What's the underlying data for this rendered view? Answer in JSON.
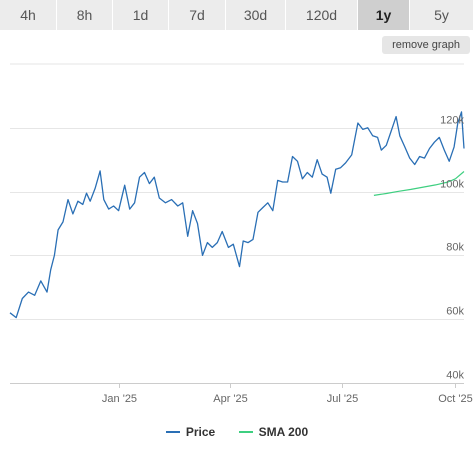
{
  "tabs": [
    {
      "label": "4h",
      "active": false
    },
    {
      "label": "8h",
      "active": false
    },
    {
      "label": "1d",
      "active": false
    },
    {
      "label": "7d",
      "active": false
    },
    {
      "label": "30d",
      "active": false
    },
    {
      "label": "120d",
      "active": false
    },
    {
      "label": "1y",
      "active": true
    },
    {
      "label": "5y",
      "active": false
    }
  ],
  "remove_graph_label": "remove graph",
  "colors": {
    "price": "#2a6fb5",
    "sma": "#3ecf80",
    "grid": "#e6e6e6",
    "tab_bg": "#ececec",
    "tab_active": "#cfcfcf"
  },
  "legend": {
    "price_label": "Price",
    "sma_label": "SMA 200"
  },
  "chart_data": {
    "type": "line",
    "x_tick_labels": [
      "Jan '25",
      "Apr '25",
      "Jul '25",
      "Oct '25"
    ],
    "x_tick_dates": [
      "2025-01-01",
      "2025-04-01",
      "2025-07-01",
      "2025-10-01"
    ],
    "x_range": [
      "2024-10-05",
      "2025-10-08"
    ],
    "y_tick_labels": [
      "40k",
      "60k",
      "80k",
      "100k",
      "120k"
    ],
    "y_ticks": [
      40000,
      60000,
      80000,
      100000,
      120000
    ],
    "ylim": [
      40000,
      140000
    ],
    "grid": true,
    "legend_position": "bottom",
    "series": [
      {
        "name": "Price",
        "color": "#2a6fb5",
        "points": [
          [
            "2024-10-05",
            62000
          ],
          [
            "2024-10-10",
            60500
          ],
          [
            "2024-10-15",
            66500
          ],
          [
            "2024-10-20",
            68500
          ],
          [
            "2024-10-25",
            67500
          ],
          [
            "2024-10-30",
            72000
          ],
          [
            "2024-11-04",
            68500
          ],
          [
            "2024-11-07",
            75500
          ],
          [
            "2024-11-10",
            80000
          ],
          [
            "2024-11-13",
            88000
          ],
          [
            "2024-11-17",
            90500
          ],
          [
            "2024-11-21",
            97500
          ],
          [
            "2024-11-25",
            93000
          ],
          [
            "2024-11-29",
            97000
          ],
          [
            "2024-12-03",
            96000
          ],
          [
            "2024-12-06",
            99500
          ],
          [
            "2024-12-09",
            97000
          ],
          [
            "2024-12-13",
            101000
          ],
          [
            "2024-12-17",
            106500
          ],
          [
            "2024-12-20",
            97500
          ],
          [
            "2024-12-24",
            94500
          ],
          [
            "2024-12-28",
            95500
          ],
          [
            "2025-01-01",
            94000
          ],
          [
            "2025-01-06",
            102000
          ],
          [
            "2025-01-10",
            94500
          ],
          [
            "2025-01-14",
            96500
          ],
          [
            "2025-01-18",
            104500
          ],
          [
            "2025-01-22",
            106000
          ],
          [
            "2025-01-26",
            102500
          ],
          [
            "2025-01-30",
            104500
          ],
          [
            "2025-02-03",
            98000
          ],
          [
            "2025-02-08",
            96500
          ],
          [
            "2025-02-13",
            97500
          ],
          [
            "2025-02-18",
            95500
          ],
          [
            "2025-02-22",
            96500
          ],
          [
            "2025-02-26",
            86000
          ],
          [
            "2025-03-02",
            94000
          ],
          [
            "2025-03-06",
            90000
          ],
          [
            "2025-03-10",
            80000
          ],
          [
            "2025-03-14",
            84000
          ],
          [
            "2025-03-18",
            82500
          ],
          [
            "2025-03-22",
            84000
          ],
          [
            "2025-03-26",
            87500
          ],
          [
            "2025-03-31",
            82500
          ],
          [
            "2025-04-04",
            83500
          ],
          [
            "2025-04-09",
            76500
          ],
          [
            "2025-04-12",
            84500
          ],
          [
            "2025-04-16",
            84000
          ],
          [
            "2025-04-20",
            85000
          ],
          [
            "2025-04-24",
            93500
          ],
          [
            "2025-04-28",
            95000
          ],
          [
            "2025-05-02",
            96500
          ],
          [
            "2025-05-06",
            94000
          ],
          [
            "2025-05-10",
            103500
          ],
          [
            "2025-05-14",
            103000
          ],
          [
            "2025-05-18",
            103000
          ],
          [
            "2025-05-22",
            111000
          ],
          [
            "2025-05-26",
            109500
          ],
          [
            "2025-05-30",
            104000
          ],
          [
            "2025-06-03",
            106000
          ],
          [
            "2025-06-07",
            104500
          ],
          [
            "2025-06-11",
            110000
          ],
          [
            "2025-06-15",
            105500
          ],
          [
            "2025-06-19",
            104500
          ],
          [
            "2025-06-22",
            99500
          ],
          [
            "2025-06-26",
            107000
          ],
          [
            "2025-06-30",
            107500
          ],
          [
            "2025-07-04",
            109000
          ],
          [
            "2025-07-09",
            111500
          ],
          [
            "2025-07-12",
            117500
          ],
          [
            "2025-07-14",
            121500
          ],
          [
            "2025-07-18",
            119500
          ],
          [
            "2025-07-22",
            120000
          ],
          [
            "2025-07-26",
            117500
          ],
          [
            "2025-07-30",
            117000
          ],
          [
            "2025-08-02",
            113000
          ],
          [
            "2025-08-06",
            114500
          ],
          [
            "2025-08-10",
            119000
          ],
          [
            "2025-08-14",
            123500
          ],
          [
            "2025-08-17",
            117500
          ],
          [
            "2025-08-21",
            114000
          ],
          [
            "2025-08-25",
            110500
          ],
          [
            "2025-08-29",
            108500
          ],
          [
            "2025-09-02",
            111000
          ],
          [
            "2025-09-06",
            110500
          ],
          [
            "2025-09-10",
            113500
          ],
          [
            "2025-09-14",
            115500
          ],
          [
            "2025-09-18",
            117000
          ],
          [
            "2025-09-22",
            113000
          ],
          [
            "2025-09-26",
            109500
          ],
          [
            "2025-09-30",
            114000
          ],
          [
            "2025-10-03",
            121500
          ],
          [
            "2025-10-06",
            125000
          ],
          [
            "2025-10-08",
            113500
          ]
        ]
      },
      {
        "name": "SMA 200",
        "color": "#3ecf80",
        "points": [
          [
            "2025-07-27",
            98800
          ],
          [
            "2025-08-06",
            99400
          ],
          [
            "2025-08-16",
            100100
          ],
          [
            "2025-08-26",
            100700
          ],
          [
            "2025-09-05",
            101400
          ],
          [
            "2025-09-15",
            102100
          ],
          [
            "2025-09-25",
            103000
          ],
          [
            "2025-10-01",
            104000
          ],
          [
            "2025-10-08",
            106300
          ]
        ]
      }
    ]
  }
}
